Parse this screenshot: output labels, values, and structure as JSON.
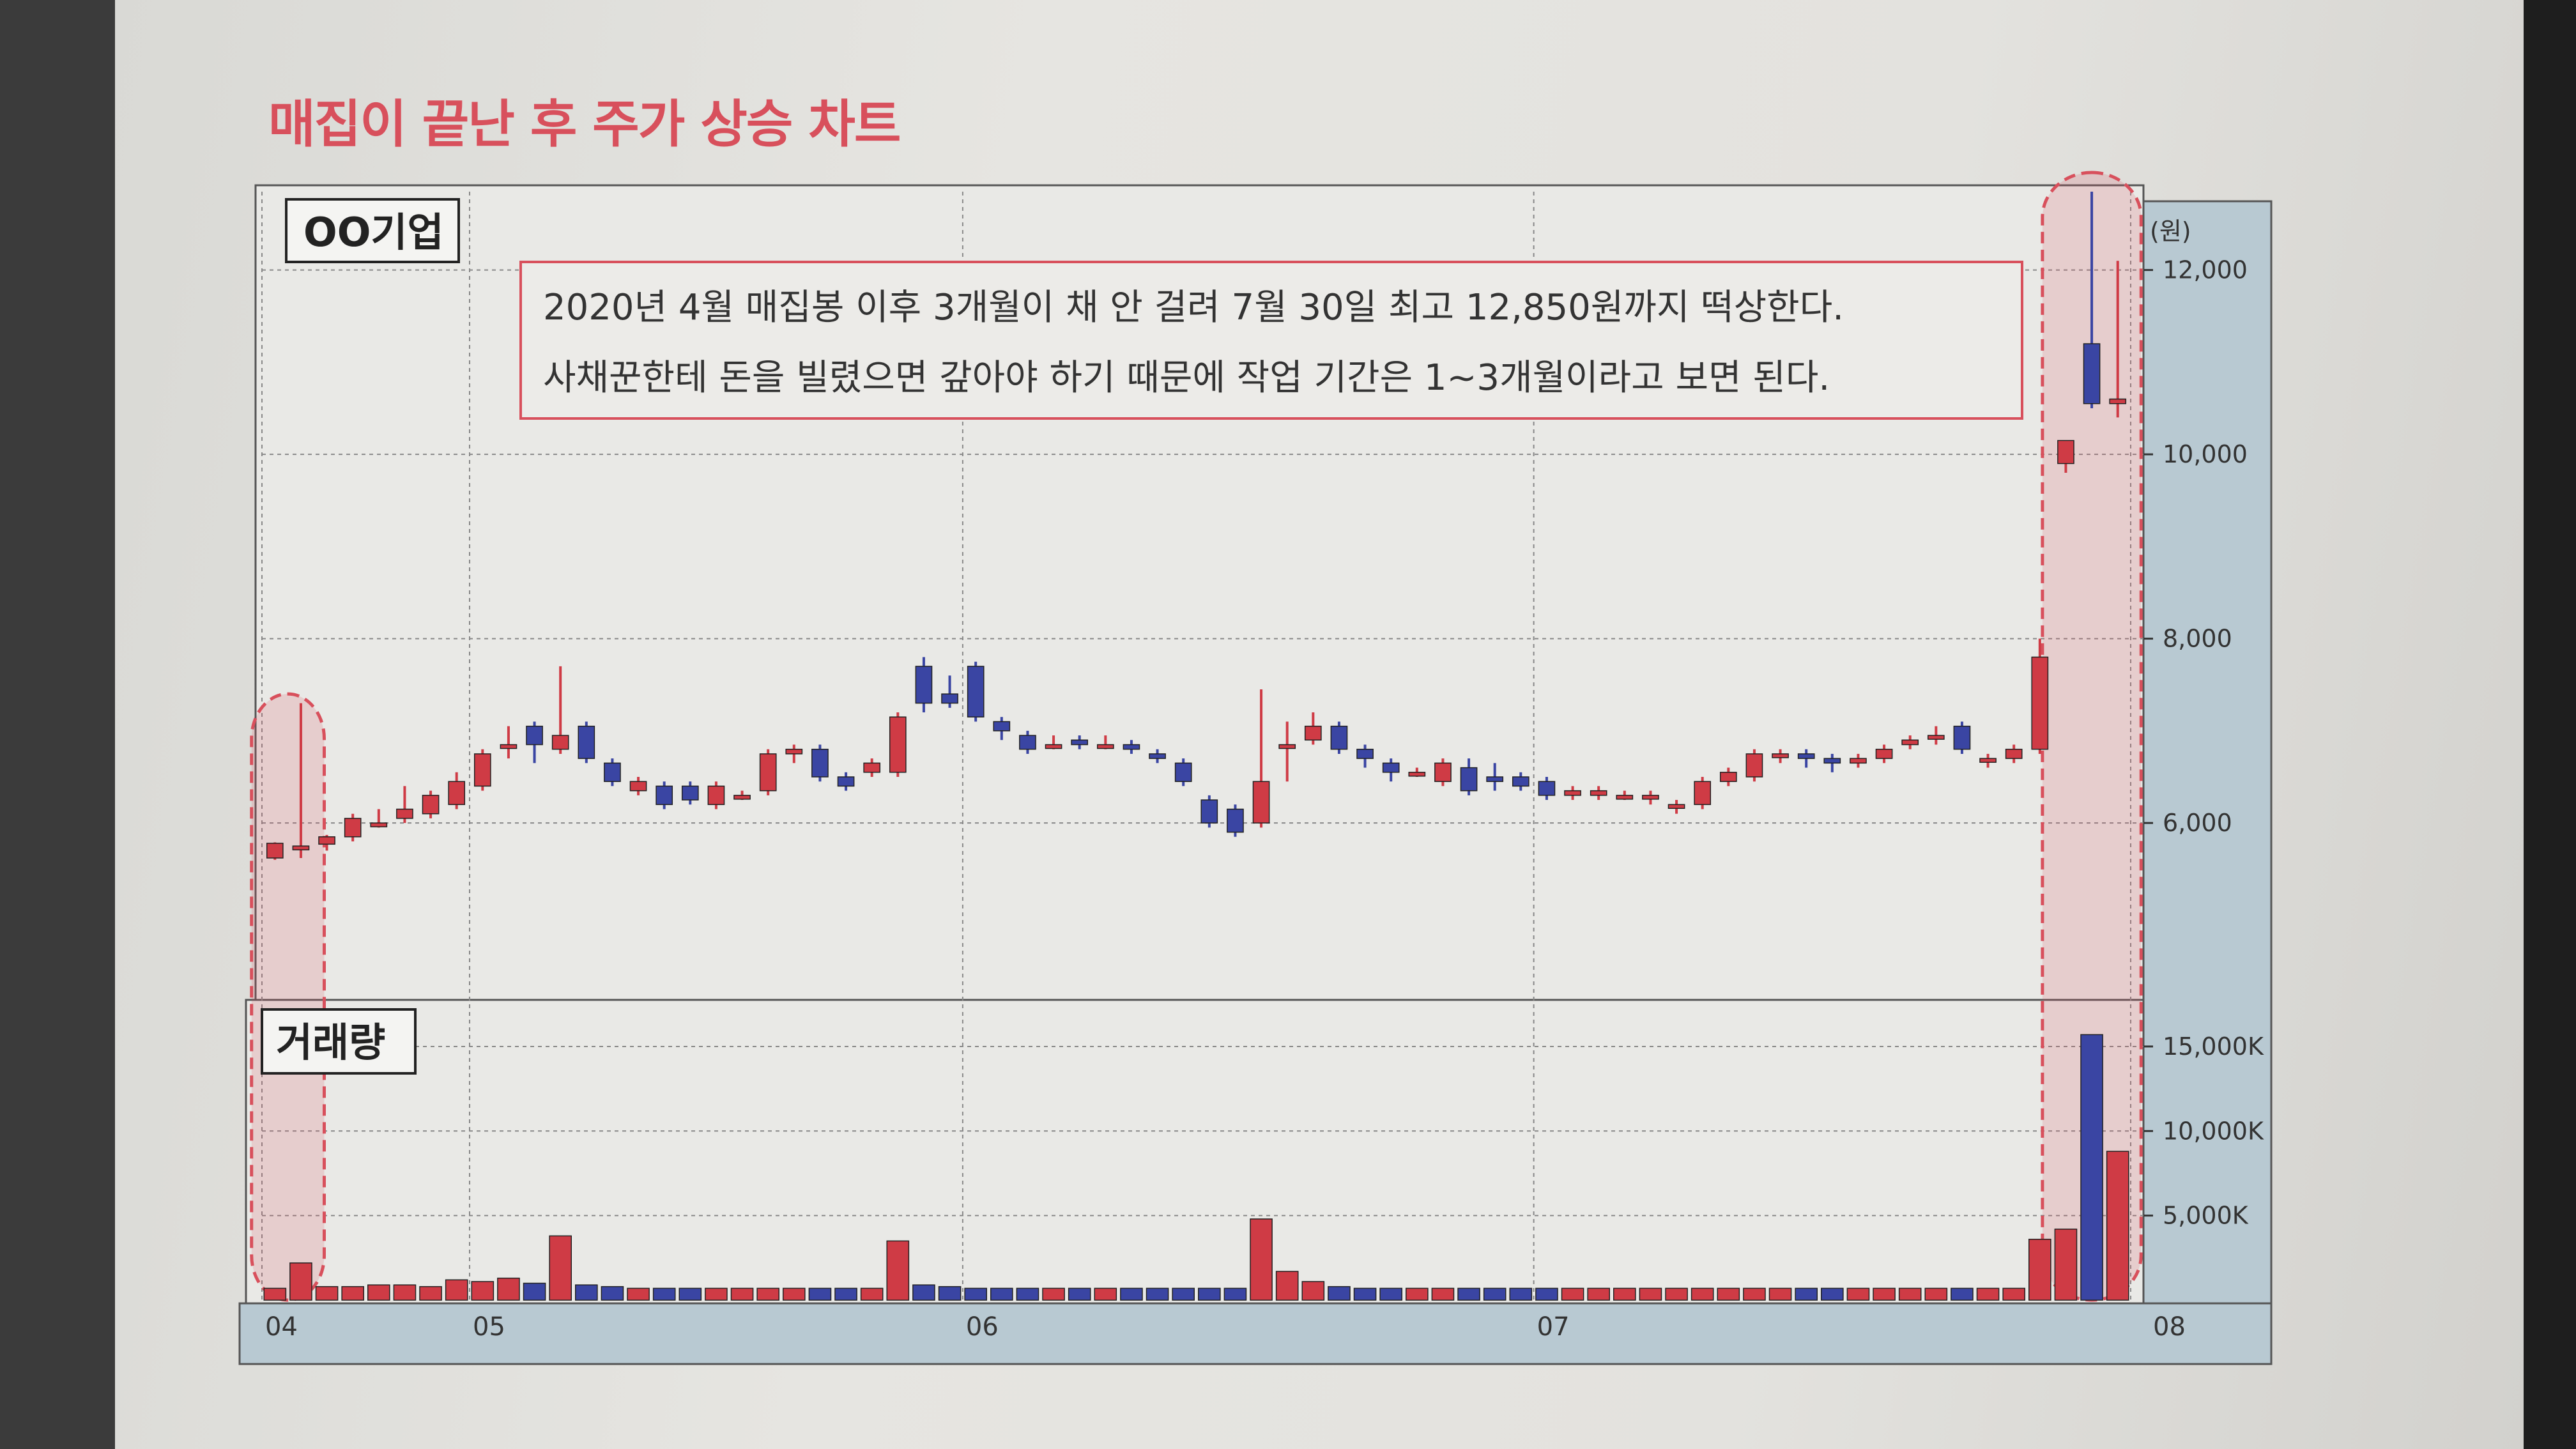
{
  "title": "매집이 끝난 후 주가 상승 차트",
  "chart_data": [
    {
      "type": "candlestick",
      "panel_label": "OO기업",
      "y_unit": "(원)",
      "y_ticks": [
        {
          "value": 12000,
          "label": "12,000"
        },
        {
          "value": 10000,
          "label": "10,000"
        },
        {
          "value": 8000,
          "label": "8,000"
        },
        {
          "value": 6000,
          "label": "6,000"
        }
      ],
      "ylim": [
        4150,
        12850
      ],
      "annotation": [
        "2020년 4월 매집봉 이후 3개월이 채 안 걸려 7월 30일 최고 12,850원까지 떡상한다.",
        "사채꾼한테 돈을 빌렸으면 갚아야 하기 때문에 작업 기간은 1~3개월이라고 보면 된다."
      ],
      "x_ticks": [
        "04",
        "05",
        "06",
        "07",
        "08"
      ],
      "candles": [
        [
          5620,
          5780,
          5600,
          5790
        ],
        [
          5750,
          5750,
          5620,
          7300
        ],
        [
          5770,
          5850,
          5700,
          5870
        ],
        [
          5850,
          6050,
          5800,
          6100
        ],
        [
          6000,
          6000,
          5950,
          6150
        ],
        [
          6050,
          6150,
          6000,
          6400
        ],
        [
          6100,
          6300,
          6050,
          6350
        ],
        [
          6200,
          6450,
          6150,
          6550
        ],
        [
          6400,
          6750,
          6350,
          6800
        ],
        [
          6850,
          6850,
          6700,
          7050
        ],
        [
          7050,
          6850,
          6650,
          7100
        ],
        [
          6800,
          6950,
          6750,
          7700
        ],
        [
          7050,
          6700,
          6650,
          7100
        ],
        [
          6650,
          6450,
          6400,
          6700
        ],
        [
          6350,
          6450,
          6300,
          6500
        ],
        [
          6400,
          6200,
          6150,
          6450
        ],
        [
          6400,
          6250,
          6200,
          6450
        ],
        [
          6200,
          6400,
          6150,
          6450
        ],
        [
          6300,
          6300,
          6250,
          6350
        ],
        [
          6350,
          6750,
          6300,
          6800
        ],
        [
          6750,
          6800,
          6650,
          6850
        ],
        [
          6800,
          6500,
          6450,
          6850
        ],
        [
          6500,
          6400,
          6350,
          6550
        ],
        [
          6550,
          6650,
          6500,
          6700
        ],
        [
          6550,
          7150,
          6500,
          7200
        ],
        [
          7700,
          7300,
          7200,
          7800
        ],
        [
          7400,
          7300,
          7250,
          7600
        ],
        [
          7700,
          7150,
          7100,
          7750
        ],
        [
          7100,
          7000,
          6900,
          7150
        ],
        [
          6950,
          6800,
          6750,
          7000
        ],
        [
          6850,
          6850,
          6800,
          6950
        ],
        [
          6900,
          6850,
          6800,
          6950
        ],
        [
          6850,
          6850,
          6800,
          6950
        ],
        [
          6850,
          6800,
          6750,
          6900
        ],
        [
          6750,
          6700,
          6650,
          6800
        ],
        [
          6650,
          6450,
          6400,
          6700
        ],
        [
          6250,
          6000,
          5950,
          6300
        ],
        [
          6150,
          5900,
          5850,
          6200
        ],
        [
          6000,
          6450,
          5950,
          7450
        ],
        [
          6850,
          6850,
          6450,
          7100
        ],
        [
          6900,
          7050,
          6850,
          7200
        ],
        [
          7050,
          6800,
          6750,
          7100
        ],
        [
          6800,
          6700,
          6600,
          6850
        ],
        [
          6650,
          6550,
          6450,
          6700
        ],
        [
          6550,
          6550,
          6500,
          6600
        ],
        [
          6450,
          6650,
          6400,
          6700
        ],
        [
          6600,
          6350,
          6300,
          6700
        ],
        [
          6500,
          6450,
          6350,
          6650
        ],
        [
          6500,
          6400,
          6350,
          6550
        ],
        [
          6450,
          6300,
          6250,
          6500
        ],
        [
          6300,
          6350,
          6250,
          6400
        ],
        [
          6300,
          6350,
          6250,
          6400
        ],
        [
          6300,
          6300,
          6250,
          6350
        ],
        [
          6300,
          6300,
          6200,
          6350
        ],
        [
          6200,
          6200,
          6100,
          6250
        ],
        [
          6200,
          6450,
          6150,
          6500
        ],
        [
          6450,
          6550,
          6400,
          6600
        ],
        [
          6500,
          6750,
          6450,
          6800
        ],
        [
          6750,
          6750,
          6650,
          6800
        ],
        [
          6750,
          6700,
          6600,
          6800
        ],
        [
          6700,
          6650,
          6550,
          6750
        ],
        [
          6650,
          6700,
          6600,
          6750
        ],
        [
          6700,
          6800,
          6650,
          6850
        ],
        [
          6850,
          6900,
          6800,
          6950
        ],
        [
          6950,
          6950,
          6850,
          7050
        ],
        [
          7050,
          6800,
          6750,
          7100
        ],
        [
          6700,
          6700,
          6600,
          6750
        ],
        [
          6700,
          6800,
          6650,
          6850
        ],
        [
          6800,
          7800,
          6750,
          8000
        ],
        [
          9900,
          10150,
          9800,
          10150
        ],
        [
          11200,
          10550,
          10500,
          12850
        ],
        [
          10550,
          10600,
          10400,
          12100
        ]
      ],
      "volume_label": "거래량",
      "volume_ticks": [
        {
          "value": 15000,
          "label": "15,000K"
        },
        {
          "value": 10000,
          "label": "10,000K"
        },
        {
          "value": 5000,
          "label": "5,000K"
        }
      ],
      "volume": [
        700,
        2200,
        800,
        800,
        900,
        900,
        800,
        1200,
        1100,
        1300,
        1000,
        3800,
        900,
        800,
        700,
        700,
        700,
        700,
        700,
        700,
        700,
        700,
        700,
        700,
        3500,
        900,
        800,
        700,
        700,
        700,
        700,
        700,
        700,
        700,
        700,
        700,
        700,
        700,
        4800,
        1700,
        1100,
        800,
        700,
        700,
        700,
        700,
        700,
        700,
        700,
        700,
        700,
        700,
        700,
        700,
        700,
        700,
        700,
        700,
        700,
        700,
        700,
        700,
        700,
        700,
        700,
        700,
        700,
        700,
        3600,
        4200,
        15700,
        8800
      ],
      "colors": {
        "up": "#cf3b45",
        "down": "#3a45a3",
        "accent": "#d8505c"
      }
    }
  ]
}
